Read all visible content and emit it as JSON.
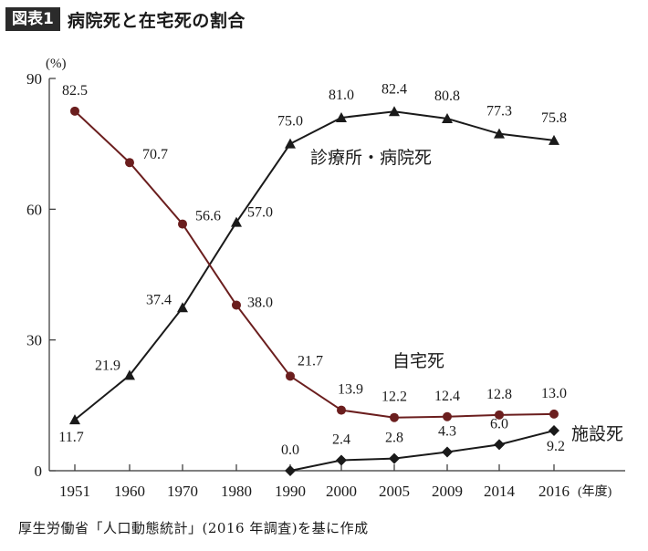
{
  "header": {
    "badge": "図表1",
    "title": "病院死と在宅死の割合"
  },
  "source": "厚生労働省「人口動態統計」(2016 年調査)を基に作成",
  "colors": {
    "home": "#6b1e1e",
    "hospital": "#1a1a1a",
    "facility": "#1a1a1a",
    "axis": "#333333"
  },
  "chart_data": {
    "type": "line",
    "x": [
      "1951",
      "1960",
      "1970",
      "1980",
      "1990",
      "2000",
      "2005",
      "2009",
      "2014",
      "2016"
    ],
    "xunit": "(年度)",
    "yunit": "(%)",
    "ylim": [
      0,
      90
    ],
    "yticks": [
      "0",
      "30",
      "60",
      "90"
    ],
    "grid": false,
    "series": [
      {
        "name": "診療所・病院死",
        "marker": "triangle",
        "values": [
          11.7,
          21.9,
          37.4,
          57.0,
          75.0,
          81.0,
          82.4,
          80.8,
          77.3,
          75.8
        ],
        "labels": [
          "11.7",
          "21.9",
          "37.4",
          "57.0",
          "75.0",
          "81.0",
          "82.4",
          "80.8",
          "77.3",
          "75.8"
        ]
      },
      {
        "name": "自宅死",
        "marker": "circle",
        "values": [
          82.5,
          70.7,
          56.6,
          38.0,
          21.7,
          13.9,
          12.2,
          12.4,
          12.8,
          13.0
        ],
        "labels": [
          "82.5",
          "70.7",
          "56.6",
          "38.0",
          "21.7",
          "13.9",
          "12.2",
          "12.4",
          "12.8",
          "13.0"
        ]
      },
      {
        "name": "施設死",
        "marker": "diamond",
        "start_index": 4,
        "values": [
          null,
          null,
          null,
          null,
          0.0,
          2.4,
          2.8,
          4.3,
          6.0,
          9.2
        ],
        "labels": [
          "",
          "",
          "",
          "",
          "0.0",
          "2.4",
          "2.8",
          "4.3",
          "6.0",
          "9.2"
        ]
      }
    ]
  }
}
